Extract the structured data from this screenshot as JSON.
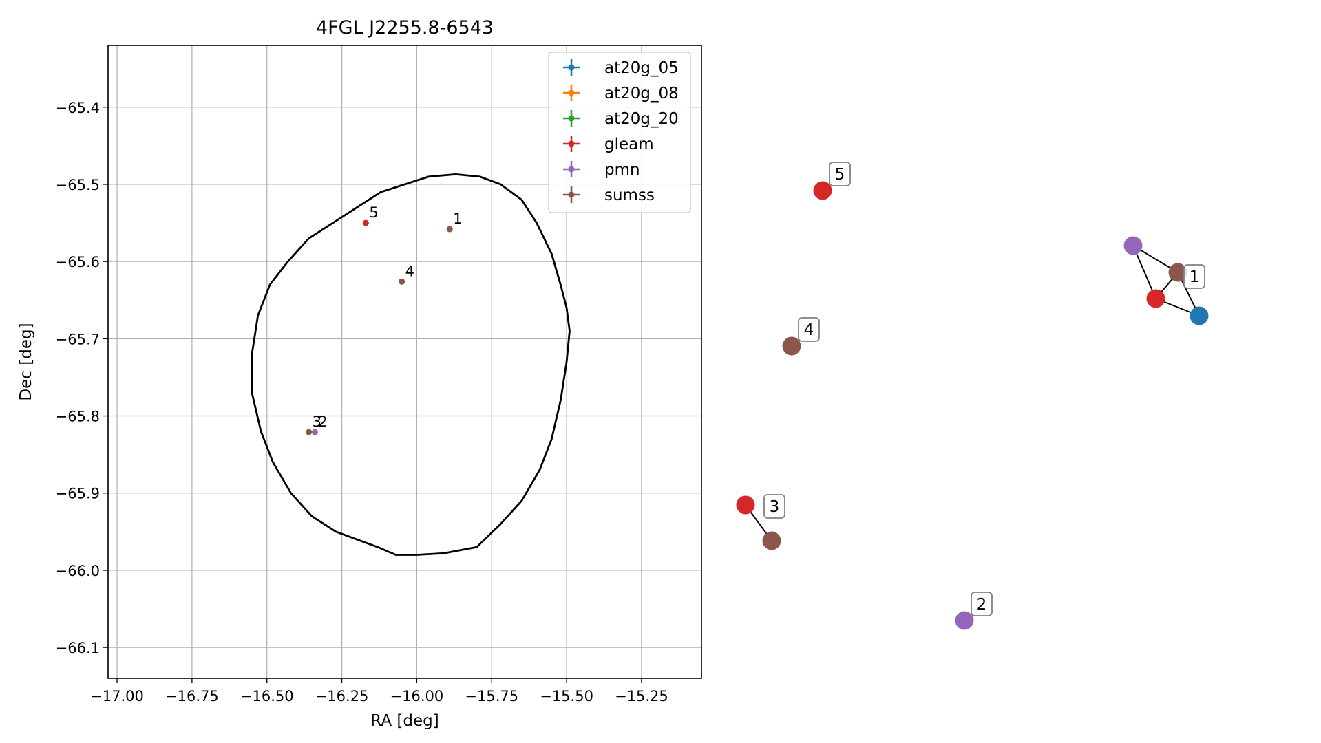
{
  "title": "4FGL J2255.8-6543",
  "chart_data": [
    {
      "type": "scatter",
      "title": "4FGL J2255.8-6543",
      "xlabel": "RA [deg]",
      "ylabel": "Dec [deg]",
      "xlim": [
        -17.03,
        -15.05
      ],
      "ylim": [
        -66.14,
        -65.32
      ],
      "xticks": [
        -17.0,
        -16.75,
        -16.5,
        -16.25,
        -16.0,
        -15.75,
        -15.5,
        -15.25
      ],
      "xtick_labels": [
        "−17.00",
        "−16.75",
        "−16.50",
        "−16.25",
        "−16.00",
        "−15.75",
        "−15.50",
        "−15.25"
      ],
      "yticks": [
        -65.4,
        -65.5,
        -65.6,
        -65.7,
        -65.8,
        -65.9,
        -66.0,
        -66.1
      ],
      "ytick_labels": [
        "−65.4",
        "−65.5",
        "−65.6",
        "−65.7",
        "−65.8",
        "−65.9",
        "−66.0",
        "−66.1"
      ],
      "grid": true,
      "legend_position": "top-right",
      "series": [
        {
          "name": "at20g_05",
          "color": "#1f77b4",
          "points": []
        },
        {
          "name": "at20g_08",
          "color": "#ff7f0e",
          "points": []
        },
        {
          "name": "at20g_20",
          "color": "#2ca02c",
          "points": []
        },
        {
          "name": "gleam",
          "color": "#d62728",
          "points": [
            {
              "x": -16.17,
              "y": -65.55
            }
          ]
        },
        {
          "name": "pmn",
          "color": "#9467bd",
          "points": [
            {
              "x": -16.34,
              "y": -65.821
            }
          ]
        },
        {
          "name": "sumss",
          "color": "#8c564b",
          "points": [
            {
              "x": -15.89,
              "y": -65.558
            },
            {
              "x": -16.05,
              "y": -65.626
            },
            {
              "x": -16.36,
              "y": -65.821
            }
          ]
        }
      ],
      "annotations": [
        {
          "text": "1",
          "x": -15.89,
          "y": -65.558
        },
        {
          "text": "4",
          "x": -16.05,
          "y": -65.626
        },
        {
          "text": "5",
          "x": -16.17,
          "y": -65.55
        },
        {
          "text": "3",
          "x": -16.36,
          "y": -65.821
        },
        {
          "text": "2",
          "x": -16.34,
          "y": -65.821
        }
      ],
      "ellipse": {
        "color": "#000000",
        "points": [
          [
            -15.87,
            -65.487
          ],
          [
            -15.79,
            -65.49
          ],
          [
            -15.72,
            -65.5
          ],
          [
            -15.65,
            -65.52
          ],
          [
            -15.6,
            -65.55
          ],
          [
            -15.55,
            -65.59
          ],
          [
            -15.52,
            -65.63
          ],
          [
            -15.5,
            -65.66
          ],
          [
            -15.49,
            -65.69
          ],
          [
            -15.5,
            -65.73
          ],
          [
            -15.52,
            -65.78
          ],
          [
            -15.55,
            -65.83
          ],
          [
            -15.59,
            -65.87
          ],
          [
            -15.65,
            -65.91
          ],
          [
            -15.72,
            -65.94
          ],
          [
            -15.8,
            -65.97
          ],
          [
            -15.91,
            -65.978
          ],
          [
            -16.0,
            -65.98
          ],
          [
            -16.07,
            -65.98
          ],
          [
            -16.13,
            -65.97
          ],
          [
            -16.2,
            -65.96
          ],
          [
            -16.27,
            -65.95
          ],
          [
            -16.35,
            -65.93
          ],
          [
            -16.42,
            -65.9
          ],
          [
            -16.48,
            -65.86
          ],
          [
            -16.52,
            -65.82
          ],
          [
            -16.55,
            -65.77
          ],
          [
            -16.55,
            -65.72
          ],
          [
            -16.53,
            -65.67
          ],
          [
            -16.49,
            -65.63
          ],
          [
            -16.43,
            -65.6
          ],
          [
            -16.36,
            -65.57
          ],
          [
            -16.28,
            -65.55
          ],
          [
            -16.2,
            -65.53
          ],
          [
            -16.12,
            -65.51
          ],
          [
            -16.04,
            -65.5
          ],
          [
            -15.96,
            -65.49
          ],
          [
            -15.87,
            -65.487
          ]
        ]
      }
    },
    {
      "type": "network",
      "nodes": [
        {
          "id": "g5",
          "group": "gleam",
          "color": "#d62728"
        },
        {
          "id": "p1",
          "group": "pmn",
          "color": "#9467bd"
        },
        {
          "id": "s1",
          "group": "sumss",
          "color": "#8c564b",
          "label": "1"
        },
        {
          "id": "g1",
          "group": "gleam",
          "color": "#d62728"
        },
        {
          "id": "a1",
          "group": "at20g_05",
          "color": "#1f77b4"
        },
        {
          "id": "s4",
          "group": "sumss",
          "color": "#8c564b",
          "label": "4"
        },
        {
          "id": "g3",
          "group": "gleam",
          "color": "#d62728",
          "label": "3"
        },
        {
          "id": "s3",
          "group": "sumss",
          "color": "#8c564b"
        },
        {
          "id": "p2",
          "group": "pmn",
          "color": "#9467bd",
          "label": "2"
        }
      ],
      "node_labels": {
        "g5": "5"
      },
      "edges": [
        [
          "p1",
          "s1"
        ],
        [
          "p1",
          "g1"
        ],
        [
          "s1",
          "g1"
        ],
        [
          "s1",
          "a1"
        ],
        [
          "g1",
          "a1"
        ],
        [
          "g3",
          "s3"
        ]
      ]
    }
  ]
}
